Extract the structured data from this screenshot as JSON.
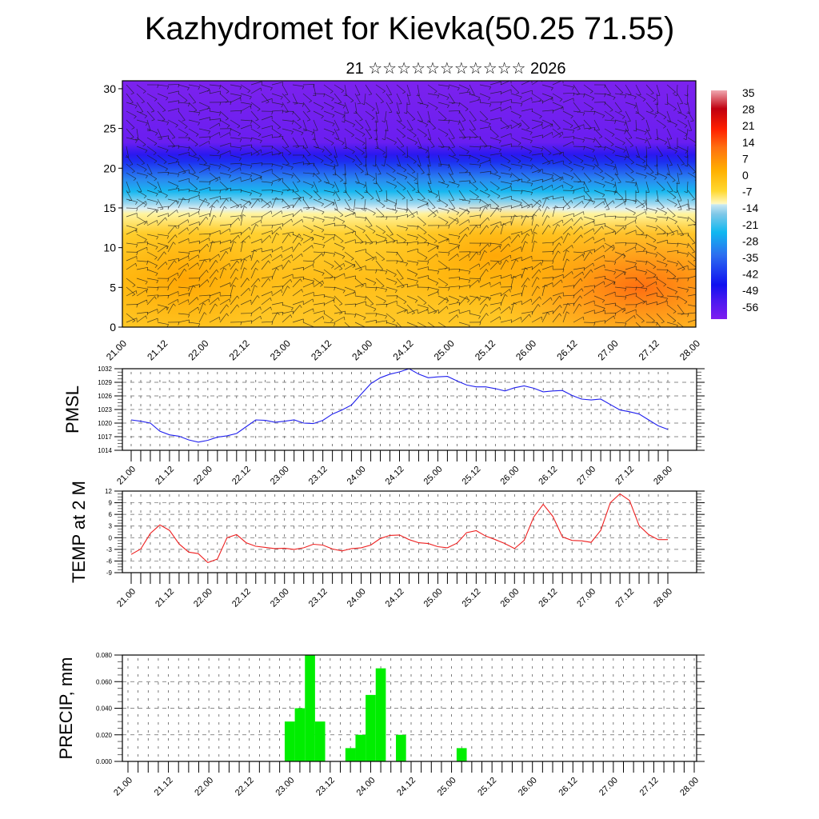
{
  "header": {
    "title": "Kazhydromet for Kievka(50.25 71.55)",
    "subtitle": "21 ☆☆☆☆☆☆☆☆☆☆☆ 2026"
  },
  "colors": {
    "pmsl_line": "#2020ee",
    "temp_line": "#ee2020",
    "precip_bar": "#00ee00",
    "grid": "#555555"
  },
  "chart_data": [
    {
      "type": "heatmap",
      "title": "",
      "xlabel": "",
      "ylabel": "",
      "ylim": [
        0,
        31
      ],
      "yticks": [
        "0",
        "5",
        "10",
        "15",
        "20",
        "25",
        "30"
      ],
      "xticks": [
        "21.00",
        "21.12",
        "22.00",
        "22.12",
        "23.00",
        "23.12",
        "24.00",
        "24.12",
        "25.00",
        "25.12",
        "26.00",
        "26.12",
        "27.00",
        "27.12",
        "28.00"
      ],
      "overlay": "wind barbs",
      "colorbar": {
        "labels": [
          "35",
          "28",
          "21",
          "14",
          "7",
          "0",
          "-7",
          "-14",
          "-21",
          "-28",
          "-35",
          "-42",
          "-49",
          "-56"
        ],
        "range": [
          -63,
          42
        ]
      },
      "bands_by_level": [
        {
          "level": 0,
          "temp": 8
        },
        {
          "level": 5,
          "temp": 7
        },
        {
          "level": 10,
          "temp": 3
        },
        {
          "level": 14,
          "temp": -7
        },
        {
          "level": 15,
          "temp": -14
        },
        {
          "level": 17,
          "temp": -28
        },
        {
          "level": 19,
          "temp": -38
        },
        {
          "level": 21,
          "temp": -50
        },
        {
          "level": 22,
          "temp": -56
        },
        {
          "level": 25,
          "temp": -60
        },
        {
          "level": 31,
          "temp": -60
        }
      ]
    },
    {
      "type": "line",
      "ylabel": "PMSL",
      "ylim": [
        1014,
        1032
      ],
      "yticks": [
        "1014",
        "1017",
        "1020",
        "1023",
        "1026",
        "1029",
        "1032"
      ],
      "xticks": [
        "21.00",
        "21.12",
        "22.00",
        "22.12",
        "23.00",
        "23.12",
        "24.00",
        "24.12",
        "25.00",
        "25.12",
        "26.00",
        "26.12",
        "27.00",
        "27.12",
        "28.00"
      ],
      "x_step_hours": 3,
      "series": [
        {
          "name": "PMSL",
          "values": [
            1020.7,
            1020.4,
            1020.0,
            1018.2,
            1017.4,
            1017.1,
            1016.3,
            1015.8,
            1016.2,
            1016.9,
            1017.2,
            1017.7,
            1019.2,
            1020.7,
            1020.6,
            1020.2,
            1020.4,
            1020.7,
            1020.0,
            1019.9,
            1020.6,
            1022.0,
            1022.9,
            1024.0,
            1026.4,
            1028.7,
            1030.0,
            1030.8,
            1031.3,
            1032.0,
            1030.8,
            1030.0,
            1030.2,
            1030.3,
            1029.3,
            1028.4,
            1028.0,
            1028.0,
            1027.6,
            1027.1,
            1027.8,
            1028.2,
            1027.7,
            1026.9,
            1027.1,
            1027.2,
            1026.1,
            1025.3,
            1025.1,
            1025.3,
            1024.1,
            1022.9,
            1022.5,
            1022.0,
            1020.7,
            1019.4,
            1018.6
          ]
        }
      ]
    },
    {
      "type": "line",
      "ylabel": "TEMP at 2 M",
      "ylim": [
        -9,
        12
      ],
      "yticks": [
        "-9",
        "-6",
        "-3",
        "0",
        "3",
        "6",
        "9",
        "12"
      ],
      "xticks": [
        "21.00",
        "21.12",
        "22.00",
        "22.12",
        "23.00",
        "23.12",
        "24.00",
        "24.12",
        "25.00",
        "25.12",
        "26.00",
        "26.12",
        "27.00",
        "27.12",
        "28.00"
      ],
      "x_step_hours": 3,
      "series": [
        {
          "name": "TEMP",
          "values": [
            -4.3,
            -2.9,
            1.1,
            3.3,
            1.9,
            -1.6,
            -3.7,
            -4.1,
            -6.4,
            -5.5,
            0.0,
            0.8,
            -1.3,
            -2.2,
            -2.5,
            -2.8,
            -2.7,
            -3.0,
            -2.6,
            -1.7,
            -1.9,
            -2.9,
            -3.4,
            -2.8,
            -2.6,
            -1.9,
            -0.2,
            0.6,
            0.7,
            -0.5,
            -1.3,
            -1.5,
            -2.3,
            -2.6,
            -1.4,
            1.3,
            1.8,
            0.4,
            -0.5,
            -1.5,
            -2.8,
            -0.7,
            5.3,
            8.6,
            5.5,
            0.2,
            -0.7,
            -0.8,
            -1.2,
            1.9,
            9.0,
            11.3,
            9.6,
            3.1,
            0.8,
            -0.5,
            -0.5
          ]
        }
      ]
    },
    {
      "type": "bar",
      "ylabel": "PRECIP, mm",
      "ylim": [
        0,
        0.08
      ],
      "yticks": [
        "0.000",
        "0.020",
        "0.040",
        "0.060",
        "0.080"
      ],
      "xticks": [
        "21.00",
        "21.12",
        "22.00",
        "22.12",
        "23.00",
        "23.12",
        "24.00",
        "24.12",
        "25.00",
        "25.12",
        "26.00",
        "26.12",
        "27.00",
        "27.12",
        "28.00"
      ],
      "x_step_hours": 3,
      "series": [
        {
          "name": "PRECIP",
          "values": [
            0,
            0,
            0,
            0,
            0,
            0,
            0,
            0,
            0,
            0,
            0,
            0,
            0,
            0,
            0,
            0,
            0.03,
            0.04,
            0.08,
            0.03,
            0,
            0,
            0.01,
            0.02,
            0.05,
            0.07,
            0,
            0.02,
            0,
            0,
            0,
            0,
            0,
            0.01,
            0,
            0,
            0,
            0,
            0,
            0,
            0,
            0,
            0,
            0,
            0,
            0,
            0,
            0,
            0,
            0,
            0,
            0,
            0,
            0,
            0,
            0,
            0
          ]
        }
      ]
    }
  ]
}
